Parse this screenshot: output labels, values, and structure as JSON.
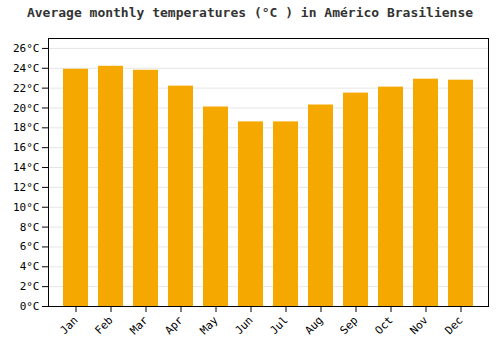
{
  "chart_data": {
    "type": "bar",
    "title": "Average monthly temperatures (°C ) in Américo Brasiliense",
    "categories": [
      "Jan",
      "Feb",
      "Mar",
      "Apr",
      "May",
      "Jun",
      "Jul",
      "Aug",
      "Sep",
      "Oct",
      "Nov",
      "Dec"
    ],
    "values": [
      23.9,
      24.2,
      23.8,
      22.2,
      20.1,
      18.6,
      18.6,
      20.3,
      21.5,
      22.1,
      22.9,
      22.8
    ],
    "color": "#F5A800",
    "ylim": [
      0,
      27
    ],
    "yticks": [
      {
        "value": 0,
        "label": "0°C"
      },
      {
        "value": 2,
        "label": "2°C"
      },
      {
        "value": 4,
        "label": "4°C"
      },
      {
        "value": 6,
        "label": "6°C"
      },
      {
        "value": 8,
        "label": "8°C"
      },
      {
        "value": 10,
        "label": "10°C"
      },
      {
        "value": 12,
        "label": "12°C"
      },
      {
        "value": 14,
        "label": "14°C"
      },
      {
        "value": 16,
        "label": "16°C"
      },
      {
        "value": 18,
        "label": "18°C"
      },
      {
        "value": 20,
        "label": "20°C"
      },
      {
        "value": 22,
        "label": "22°C"
      },
      {
        "value": 24,
        "label": "24°C"
      },
      {
        "value": 26,
        "label": "26°C"
      }
    ],
    "grid": true
  }
}
